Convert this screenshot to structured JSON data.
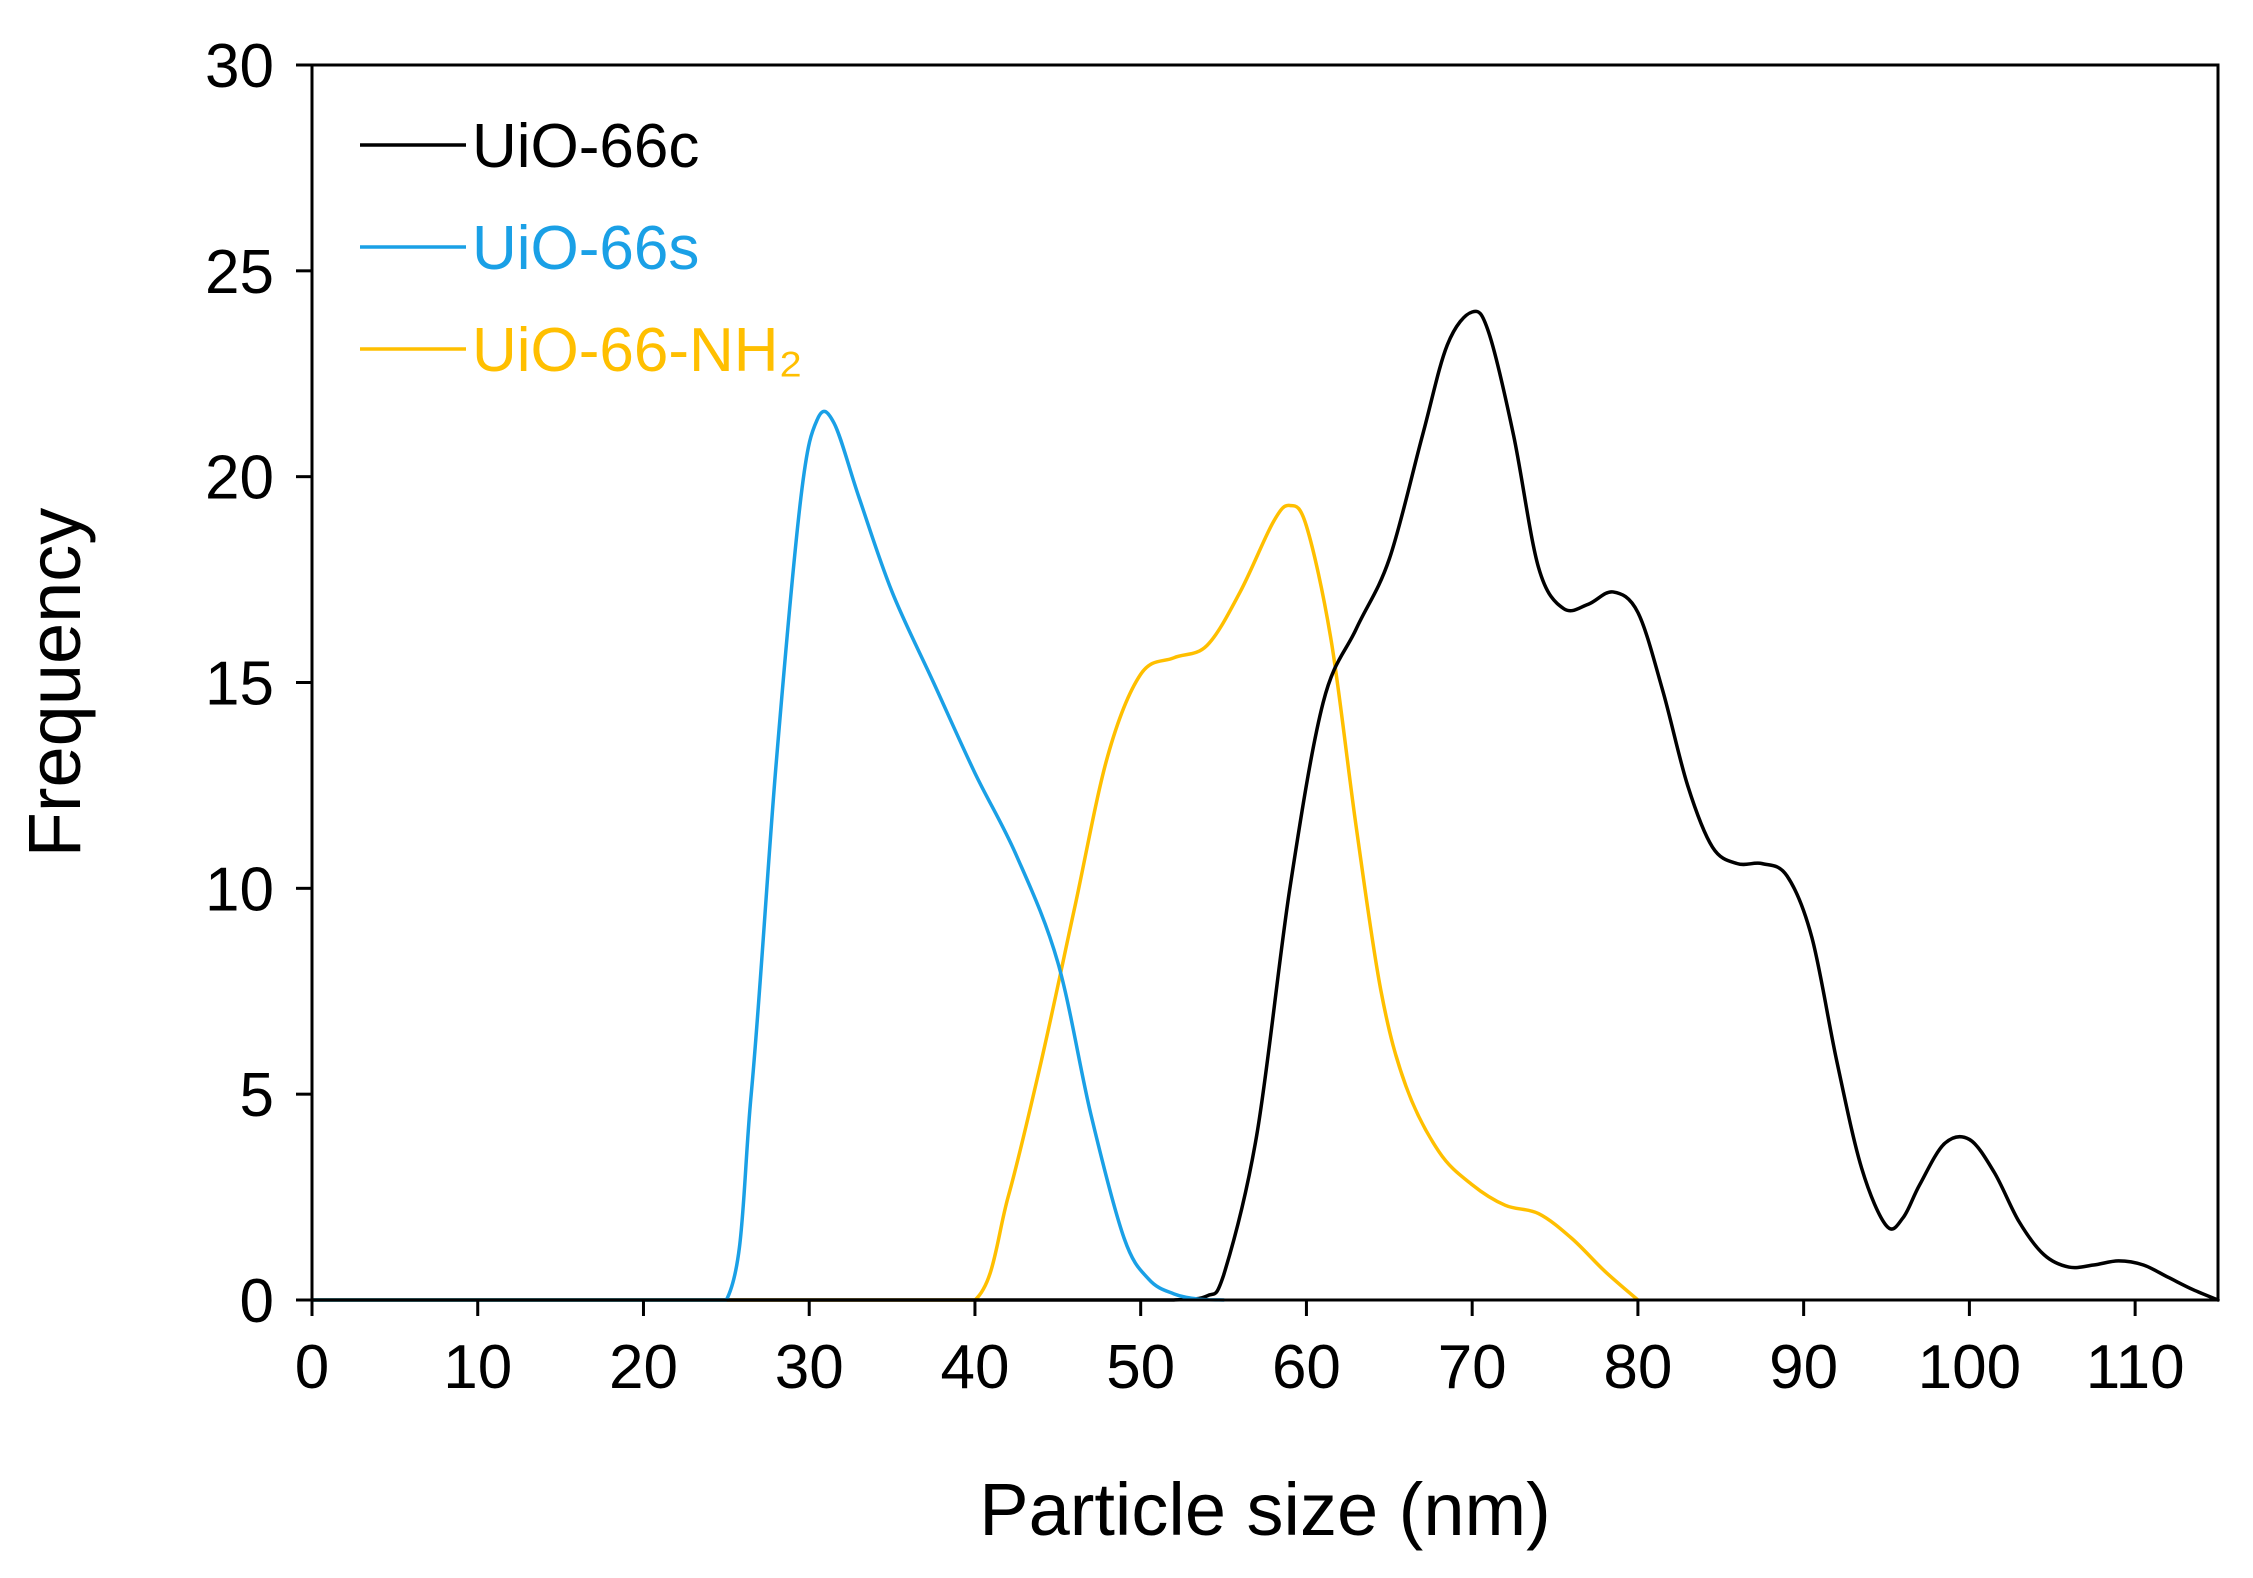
{
  "chart_data": {
    "type": "line",
    "xlabel": "Particle size (nm)",
    "ylabel": "Frequency",
    "xlim": [
      0,
      115
    ],
    "ylim": [
      0,
      30
    ],
    "xticks": [
      0,
      10,
      20,
      30,
      40,
      50,
      60,
      70,
      80,
      90,
      100,
      110
    ],
    "yticks": [
      0,
      5,
      10,
      15,
      20,
      25,
      30
    ],
    "grid": false,
    "legend_position": "top-left",
    "series": [
      {
        "name": "UiO-66c",
        "color": "#000000",
        "x": [
          0,
          10,
          20,
          30,
          40,
          45,
          50,
          52,
          54,
          55,
          57,
          59,
          61,
          63,
          65,
          67,
          68.5,
          70,
          71,
          72.5,
          74,
          75.5,
          77,
          78.5,
          80,
          81.5,
          83,
          84.5,
          86,
          87.5,
          89,
          90.5,
          92,
          93.5,
          95,
          96,
          97,
          98.5,
          100,
          101.5,
          103,
          104.5,
          106,
          107.5,
          109,
          110.5,
          112,
          113.5,
          115
        ],
        "y": [
          0,
          0,
          0,
          0,
          0,
          0,
          0,
          0,
          0.1,
          0.6,
          4,
          10,
          14.5,
          16.3,
          18,
          21,
          23.2,
          24,
          23.5,
          21,
          17.8,
          16.8,
          16.9,
          17.2,
          16.7,
          14.8,
          12.5,
          11,
          10.6,
          10.6,
          10.3,
          8.8,
          5.8,
          3.2,
          1.8,
          2,
          2.8,
          3.8,
          3.9,
          3.1,
          1.9,
          1.1,
          0.8,
          0.85,
          0.95,
          0.85,
          0.55,
          0.25,
          0
        ]
      },
      {
        "name": "UiO-66s",
        "color": "#1aa0e6",
        "x": [
          0,
          10,
          20,
          25,
          26.5,
          28,
          29.5,
          30.5,
          31.5,
          33,
          35,
          37.5,
          40,
          42.5,
          45,
          47,
          49,
          50.5,
          52,
          53.5,
          55
        ],
        "y": [
          0,
          0,
          0,
          0,
          5,
          13,
          19.5,
          21.4,
          21.3,
          19.5,
          17.2,
          15,
          12.8,
          10.8,
          8.2,
          4.5,
          1.5,
          0.5,
          0.15,
          0.02,
          0
        ]
      },
      {
        "name": "UiO-66-NH₂",
        "color": "#ffbf00",
        "x": [
          0,
          10,
          20,
          30,
          35,
          40,
          42,
          44,
          46,
          48,
          50,
          52,
          54,
          56,
          58,
          59,
          60,
          61.5,
          63,
          64.5,
          66,
          68,
          70,
          72,
          74,
          76,
          78,
          80
        ],
        "y": [
          0,
          0,
          0,
          0,
          0,
          0,
          2.5,
          5.8,
          9.5,
          13.2,
          15.2,
          15.6,
          15.9,
          17.2,
          18.9,
          19.3,
          18.8,
          16,
          11.5,
          7.5,
          5.2,
          3.6,
          2.8,
          2.3,
          2.1,
          1.5,
          0.7,
          0
        ]
      }
    ]
  }
}
